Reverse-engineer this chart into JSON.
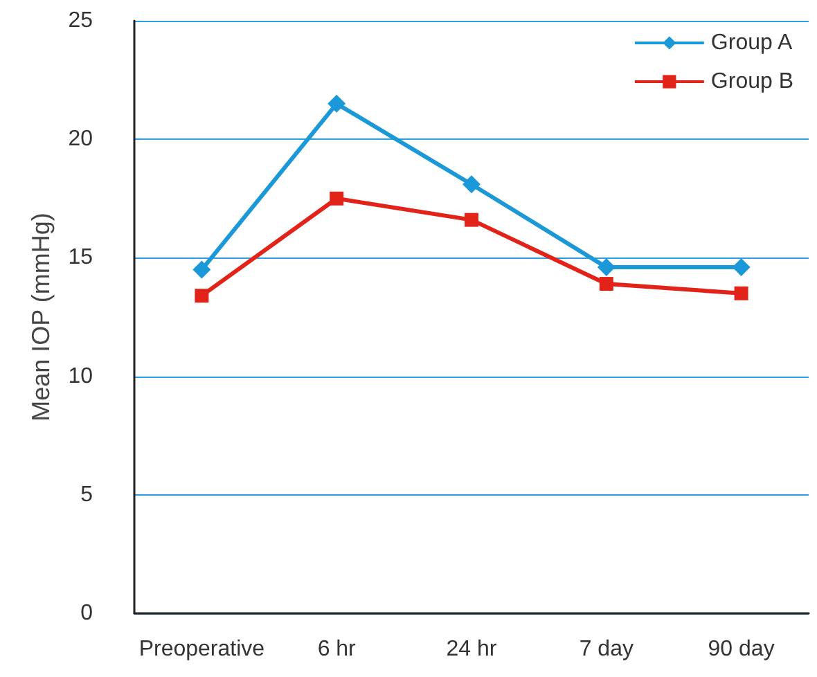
{
  "chart_data": {
    "type": "line",
    "ylabel": "Mean IOP (mmHg)",
    "categories": [
      "Preoperative",
      "6 hr",
      "24 hr",
      "7 day",
      "90 day"
    ],
    "series": [
      {
        "name": "Group A",
        "color": "#1b98d8",
        "marker": "diamond",
        "values": [
          14.5,
          21.5,
          18.1,
          14.6,
          14.6
        ]
      },
      {
        "name": "Group B",
        "color": "#e2231a",
        "marker": "square",
        "values": [
          13.4,
          17.5,
          16.6,
          13.9,
          13.5
        ]
      }
    ],
    "ylim": [
      0,
      25
    ],
    "yticks": [
      0,
      5,
      10,
      15,
      20,
      25
    ],
    "grid": "y",
    "legend": "top right",
    "line_style": "solid"
  }
}
